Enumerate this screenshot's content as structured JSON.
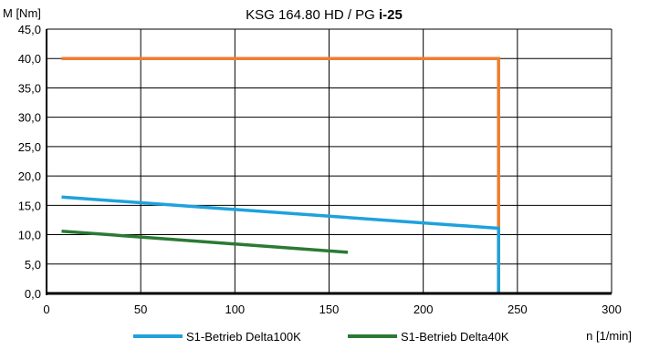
{
  "chart_data": {
    "type": "line",
    "title": "KSG 164.80 HD / PG",
    "title_bold": "i-25",
    "xlabel": "n [1/min]",
    "ylabel": "M [Nm]",
    "xlim": [
      0,
      300
    ],
    "ylim": [
      0,
      45
    ],
    "x_ticks": [
      0,
      50,
      100,
      150,
      200,
      250,
      300
    ],
    "x_tick_labels": [
      "0",
      "50",
      "100",
      "150",
      "200",
      "250",
      "300"
    ],
    "y_ticks": [
      0,
      5,
      10,
      15,
      20,
      25,
      30,
      35,
      40,
      45
    ],
    "y_tick_labels": [
      "0,0",
      "5,0",
      "10,0",
      "15,0",
      "20,0",
      "25,0",
      "30,0",
      "35,0",
      "40,0",
      "45,0"
    ],
    "grid": true,
    "legend_position": "bottom",
    "series": [
      {
        "name": "",
        "color": "#ED7D31",
        "x": [
          8,
          240,
          240
        ],
        "y": [
          40,
          40,
          0
        ]
      },
      {
        "name": "S1-Betrieb Delta100K",
        "color": "#1FA1DC",
        "x": [
          8,
          240,
          240
        ],
        "y": [
          16.4,
          11.1,
          0
        ]
      },
      {
        "name": "S1-Betrieb Delta40K",
        "color": "#2A7A33",
        "x": [
          8,
          160
        ],
        "y": [
          10.6,
          7.0
        ]
      }
    ]
  }
}
